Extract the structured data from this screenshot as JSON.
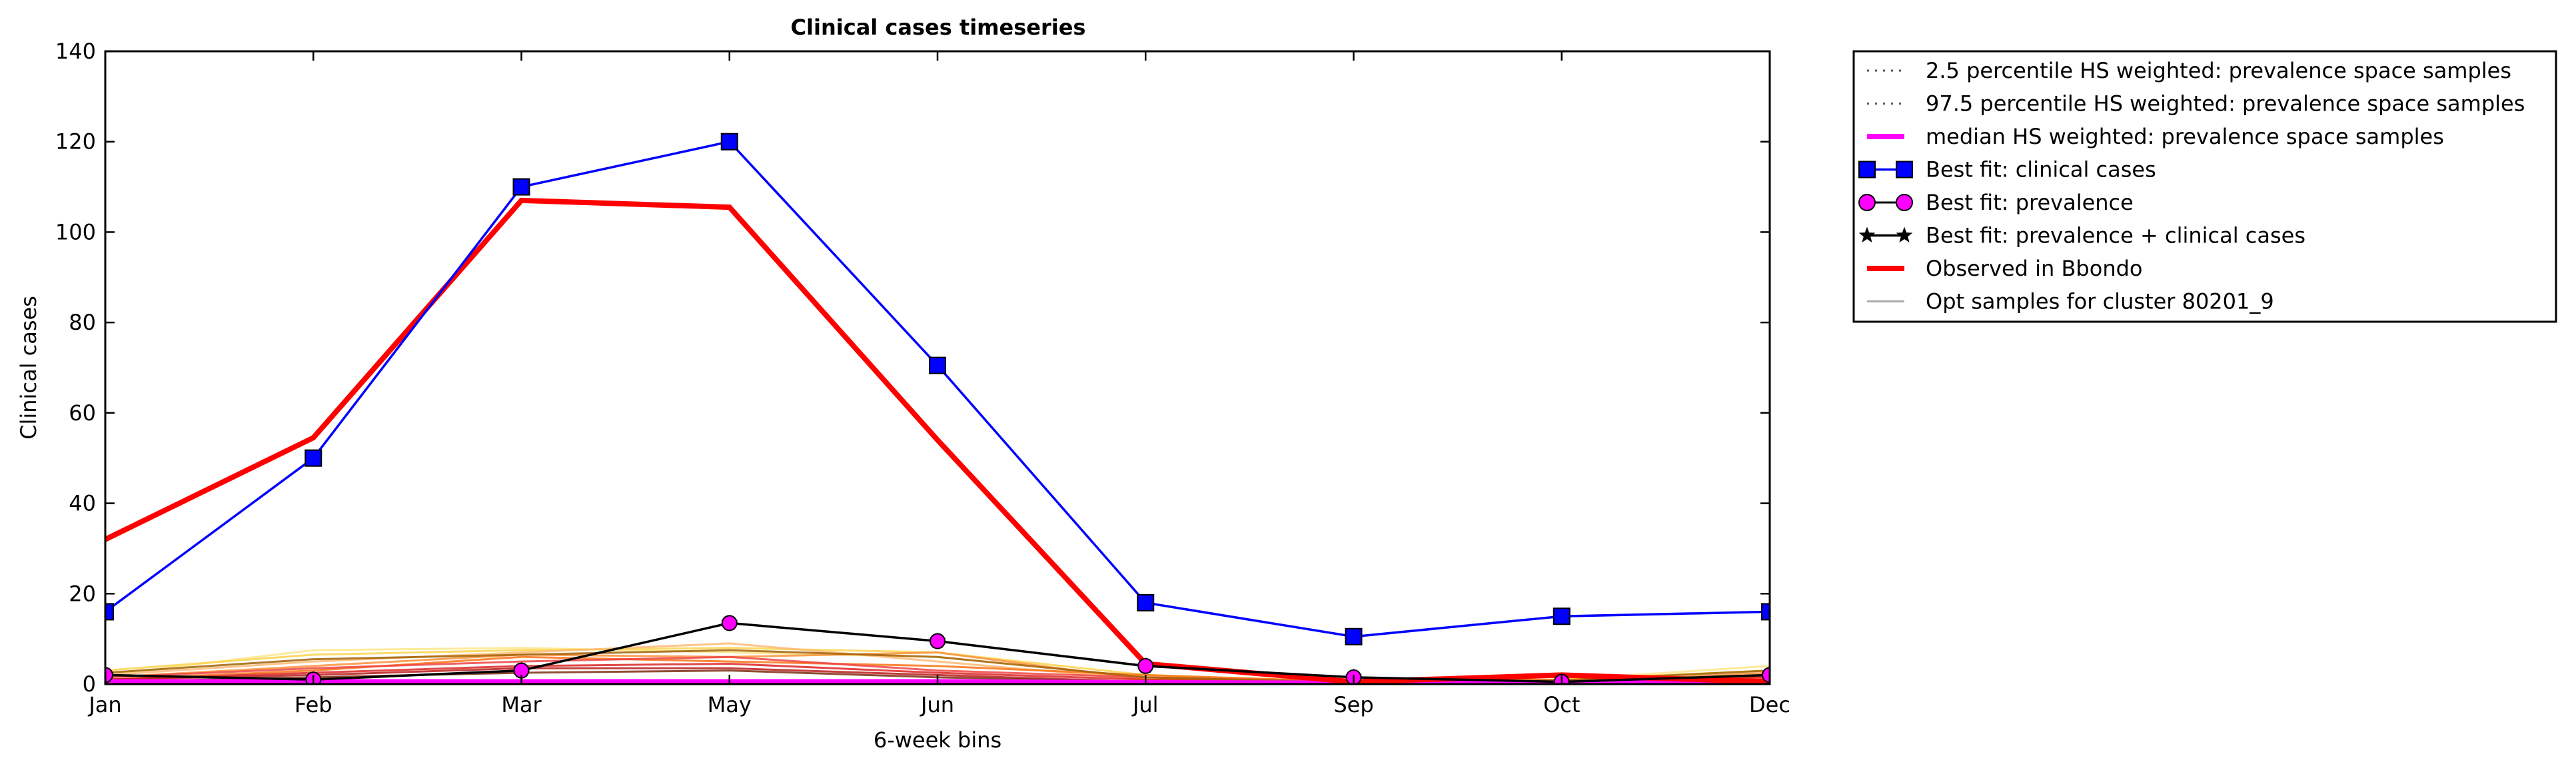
{
  "chart_data": {
    "type": "line",
    "title": "Clinical cases timeseries",
    "xlabel": "6-week bins",
    "ylabel": "Clinical cases",
    "ylim": [
      0,
      140
    ],
    "yticks": [
      0,
      20,
      40,
      60,
      80,
      100,
      120,
      140
    ],
    "categories": [
      "Jan",
      "Feb",
      "Mar",
      "May",
      "Jun",
      "Jul",
      "Sep",
      "Oct",
      "Dec"
    ],
    "grid": false,
    "legend_position": "outside-right",
    "series": [
      {
        "name": "2.5 percentile HS weighted: prevalence space samples",
        "style": "dotted",
        "color": "#555555",
        "values": [
          0,
          0,
          0,
          0,
          0,
          0,
          0,
          0,
          0
        ]
      },
      {
        "name": "97.5 percentile HS weighted: prevalence space samples",
        "style": "dotted",
        "color": "#555555",
        "values": [
          0,
          0,
          0,
          0,
          0,
          0,
          0,
          0,
          0
        ]
      },
      {
        "name": "median HS weighted: prevalence space samples",
        "style": "solid-thick",
        "color": "#ff00ff",
        "values": [
          0.5,
          0.5,
          0.5,
          0.5,
          0.5,
          0.3,
          0.2,
          0.2,
          0.3
        ]
      },
      {
        "name": "Best fit: clinical cases",
        "style": "line-square",
        "color": "#0000ff",
        "values": [
          16,
          50,
          110,
          120,
          70.5,
          18,
          10.5,
          15,
          16
        ]
      },
      {
        "name": "Best fit: prevalence",
        "style": "line-circle",
        "color": "#ff00ff",
        "values": [
          2,
          1,
          3,
          13.5,
          9.5,
          4,
          1.5,
          0.5,
          2
        ]
      },
      {
        "name": "Best fit: prevalence + clinical cases",
        "style": "line-star",
        "color": "#000000",
        "values": [
          2,
          1,
          3,
          13.5,
          9.5,
          4,
          1.5,
          0.5,
          2
        ]
      },
      {
        "name": "Observed in Bbondo",
        "style": "solid-thick",
        "color": "#ff0000",
        "values": [
          32,
          54.5,
          107,
          105.5,
          54,
          4.5,
          0.5,
          2,
          0.5
        ]
      },
      {
        "name": "Opt samples for cluster 80201_9",
        "style": "solid-thin",
        "color": "#aaaaaa",
        "values": [
          null,
          null,
          null,
          null,
          null,
          null,
          null,
          null,
          null
        ]
      }
    ],
    "sample_curves": [
      {
        "color": "#fde68a",
        "values": [
          2,
          7.5,
          8,
          7,
          6,
          1.5,
          0.5,
          1,
          4
        ]
      },
      {
        "color": "#fcd34d",
        "values": [
          3,
          6.5,
          7.5,
          8,
          7,
          2,
          0.5,
          1,
          3
        ]
      },
      {
        "color": "#fdba74",
        "values": [
          2,
          5,
          7,
          9,
          5,
          1,
          0.5,
          0.5,
          2
        ]
      },
      {
        "color": "#fb923c",
        "values": [
          1.5,
          4,
          6.5,
          6,
          7,
          1,
          0.3,
          0.5,
          2.5
        ]
      },
      {
        "color": "#f97316",
        "values": [
          1,
          3,
          6,
          5,
          4,
          2,
          0.5,
          1,
          1.5
        ]
      },
      {
        "color": "#ef4444",
        "values": [
          1.5,
          3.5,
          5,
          6,
          3,
          1.5,
          0.5,
          0.5,
          1
        ]
      },
      {
        "color": "#dc2626",
        "values": [
          1,
          2.5,
          4,
          4.5,
          2.5,
          1,
          0.3,
          0.5,
          1.5
        ]
      },
      {
        "color": "#b91c1c",
        "values": [
          1,
          2,
          3.5,
          3.5,
          2,
          0.5,
          0.2,
          0.3,
          1
        ]
      },
      {
        "color": "#7c2d12",
        "values": [
          0.5,
          1.5,
          2.5,
          3,
          1.5,
          0.5,
          0.2,
          0.3,
          0.5
        ]
      },
      {
        "color": "#a16207",
        "values": [
          2.5,
          5.5,
          6.5,
          7.5,
          6,
          1.5,
          0.3,
          0.8,
          3
        ]
      }
    ]
  }
}
